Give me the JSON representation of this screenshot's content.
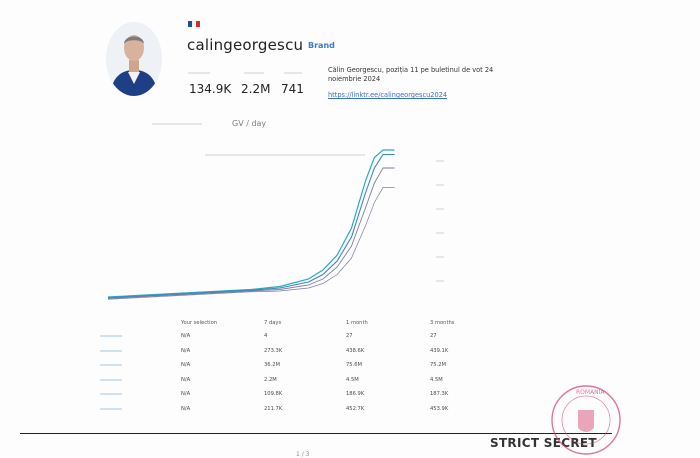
{
  "profile": {
    "username": "calingeorgescu",
    "badge": "Brand",
    "stats": [
      "134.9K",
      "2.2M",
      "741"
    ],
    "bio": "Călin Georgescu, poziția 11 pe buletinul de vot 24 noiembrie 2024",
    "link": "https://linktr.ee/calingeorgescu2024"
  },
  "chart": {
    "period_label": "GV / day"
  },
  "chart_data": {
    "type": "line",
    "title": "",
    "xlabel": "",
    "ylabel": "",
    "x": [
      0,
      10,
      20,
      30,
      40,
      50,
      60,
      70,
      75,
      80,
      85,
      90,
      93,
      96,
      100
    ],
    "series": [
      {
        "values": [
          2,
          3,
          4,
          5,
          6,
          7,
          9,
          14,
          20,
          30,
          48,
          80,
          95,
          100,
          100
        ]
      },
      {
        "values": [
          1.5,
          2.5,
          3.5,
          4.5,
          5.5,
          6.5,
          8,
          12,
          17,
          26,
          42,
          72,
          88,
          97,
          97
        ]
      },
      {
        "values": [
          1,
          2,
          3,
          4,
          5,
          6,
          7,
          10,
          14,
          22,
          36,
          62,
          78,
          88,
          88
        ]
      },
      {
        "values": [
          0.5,
          1.5,
          2.5,
          3.5,
          4.5,
          5.5,
          6,
          8,
          11,
          17,
          28,
          50,
          65,
          75,
          75
        ]
      }
    ],
    "ylim": [
      0,
      100
    ]
  },
  "table": {
    "headers": [
      "Your selection",
      "7 days",
      "1 month",
      "3 months"
    ],
    "rows": [
      {
        "cells": [
          "N/A",
          "4",
          "27",
          "27"
        ]
      },
      {
        "cells": [
          "N/A",
          "273.3K",
          "438.6K",
          "439.1K"
        ]
      },
      {
        "cells": [
          "N/A",
          "36.2M",
          "75.6M",
          "75.2M"
        ]
      },
      {
        "cells": [
          "N/A",
          "2.2M",
          "4.5M",
          "4.5M"
        ]
      },
      {
        "cells": [
          "N/A",
          "109.8K",
          "186.9K",
          "187.3K"
        ]
      },
      {
        "cells": [
          "N/A",
          "211.7K",
          "452.7K",
          "453.9K"
        ]
      }
    ]
  },
  "footer": {
    "classification": "STRICT SECRET",
    "page": "1 / 3"
  },
  "stamp": {
    "text": "ROMÂNIA"
  },
  "colors": {
    "accent": "#3b7bd0",
    "line1": "#2aa7c9",
    "line2": "#3d86b8",
    "line3": "#7a7fa0",
    "stamp": "#d43a6a"
  }
}
